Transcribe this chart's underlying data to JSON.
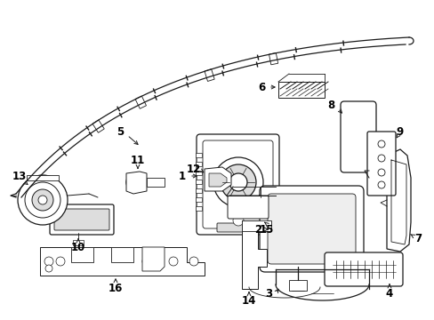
{
  "background_color": "#ffffff",
  "fig_width": 4.89,
  "fig_height": 3.6,
  "dpi": 100,
  "line_color": "#1a1a1a",
  "gray": "#aaaaaa",
  "lgray": "#dddddd"
}
